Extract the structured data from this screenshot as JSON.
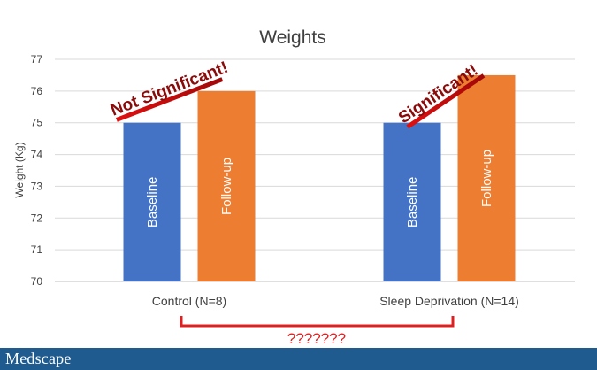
{
  "chart_data": {
    "type": "bar",
    "title": "Weights",
    "ylabel": "Weight (Kg)",
    "xlabel": "",
    "ylim": [
      70,
      77
    ],
    "yticks": [
      70,
      71,
      72,
      73,
      74,
      75,
      76,
      77
    ],
    "grid": true,
    "categories": [
      "Control (N=8)",
      "Sleep Deprivation (N=14)"
    ],
    "series": [
      {
        "name": "Baseline",
        "color": "#4472c4",
        "values": [
          75,
          75
        ]
      },
      {
        "name": "Follow-up",
        "color": "#ed7d31",
        "values": [
          76,
          76.5
        ]
      }
    ],
    "annotations": [
      "Not Significant!",
      "Significant!",
      "???????"
    ]
  },
  "footer": {
    "logo": "Medscape",
    "color": "#1f5b8e"
  },
  "colors": {
    "annotation": "#8b0a0a",
    "bracket": "#e02020"
  }
}
